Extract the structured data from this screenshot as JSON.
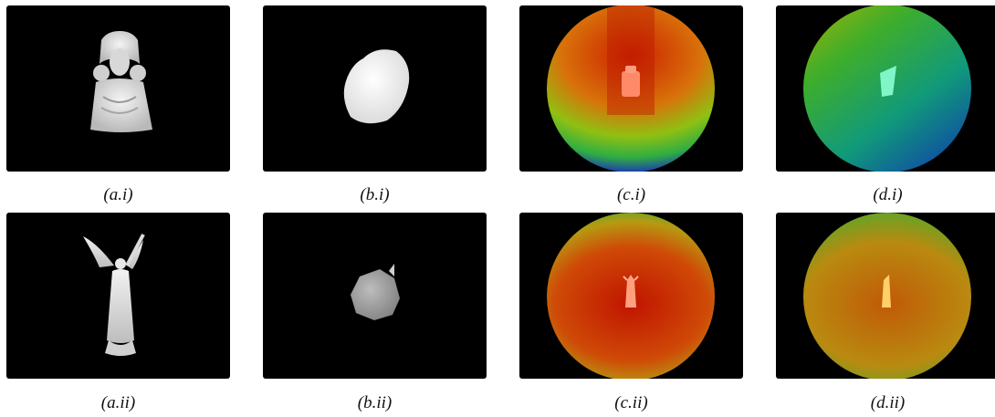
{
  "figure": {
    "row1": {
      "captions": [
        "(a.i)",
        "(b.i)",
        "(c.i)",
        "(d.i)"
      ]
    },
    "row2": {
      "captions": [
        "(a.ii)",
        "(b.ii)",
        "(c.ii)",
        "(d.ii)"
      ]
    }
  }
}
